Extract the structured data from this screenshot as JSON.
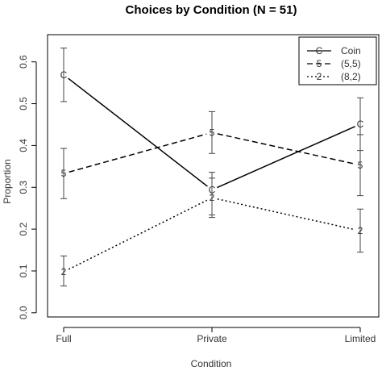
{
  "chart_data": {
    "type": "line",
    "title": "Choices by Condition (N = 51)",
    "xlabel": "Condition",
    "ylabel": "Proportion",
    "categories": [
      "Full",
      "Private",
      "Limited"
    ],
    "yticks": [
      "0.0",
      "0.1",
      "0.2",
      "0.3",
      "0.4",
      "0.5",
      "0.6"
    ],
    "ylim": [
      -0.01,
      0.665
    ],
    "legend_position": "top-right",
    "grid": false,
    "series": [
      {
        "name": "Coin",
        "symbol": "C",
        "line_style": "solid",
        "values": [
          0.569,
          0.294,
          0.451
        ],
        "err_low": [
          0.505,
          0.234,
          0.388
        ],
        "err_high": [
          0.633,
          0.336,
          0.514
        ]
      },
      {
        "name": "(5,5)",
        "symbol": "5",
        "line_style": "dashed",
        "values": [
          0.333,
          0.431,
          0.353
        ],
        "err_low": [
          0.273,
          0.381,
          0.28
        ],
        "err_high": [
          0.393,
          0.481,
          0.426
        ]
      },
      {
        "name": "(8,2)",
        "symbol": "2",
        "line_style": "dotted",
        "values": [
          0.098,
          0.275,
          0.196
        ],
        "err_low": [
          0.064,
          0.228,
          0.145
        ],
        "err_high": [
          0.136,
          0.322,
          0.248
        ]
      }
    ]
  }
}
